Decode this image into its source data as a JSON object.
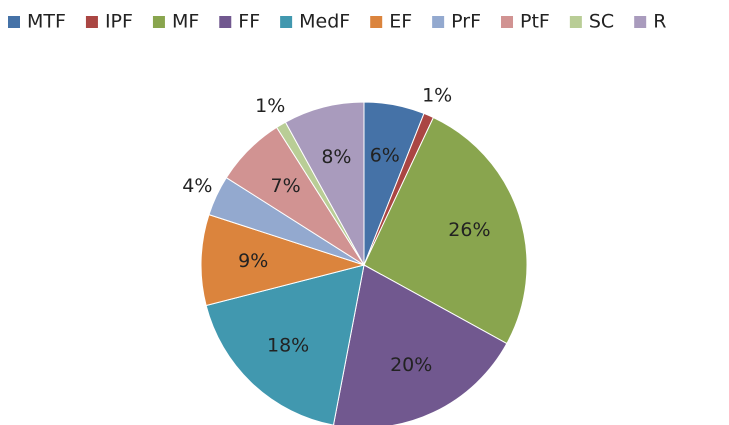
{
  "chart_data": {
    "type": "pie",
    "categories": [
      "MTF",
      "IPF",
      "MF",
      "FF",
      "MedF",
      "EF",
      "PrF",
      "PtF",
      "SC",
      "R"
    ],
    "values": [
      6,
      1,
      26,
      20,
      18,
      9,
      4,
      7,
      1,
      8
    ],
    "value_labels": [
      "6%",
      "1%",
      "26%",
      "20%",
      "18%",
      "9%",
      "4%",
      "7%",
      "1%",
      "8%"
    ],
    "colors": [
      "#4572A7",
      "#AA4643",
      "#89A54E",
      "#71588F",
      "#4198AF",
      "#DB843D",
      "#93A9CF",
      "#D19392",
      "#B9CD96",
      "#A99BBD"
    ],
    "legend": "top"
  }
}
